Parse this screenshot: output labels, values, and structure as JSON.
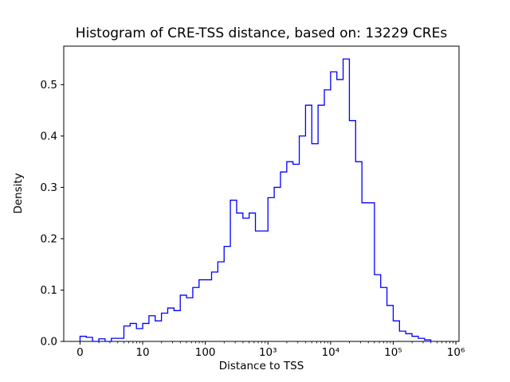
{
  "chart_data": {
    "type": "bar",
    "subtype": "step-histogram",
    "title": "Histogram of CRE-TSS distance, based on: 13229 CREs",
    "cre_count": 13229,
    "xlabel": "Distance to TSS",
    "ylabel": "Density",
    "line_color": "#0000ff",
    "axis_color": "#000000",
    "background_color": "#ffffff",
    "grid": false,
    "legend": false,
    "x_scale": "log10(distance)",
    "xlim_log": [
      -0.26,
      6.05
    ],
    "ylim": [
      0.0,
      0.575
    ],
    "bin_start_log": 0.0,
    "bin_width_log": 0.1,
    "densities": [
      0.01,
      0.008,
      0.0,
      0.005,
      0.0,
      0.006,
      0.006,
      0.03,
      0.035,
      0.025,
      0.035,
      0.05,
      0.04,
      0.055,
      0.065,
      0.06,
      0.09,
      0.085,
      0.105,
      0.12,
      0.12,
      0.135,
      0.155,
      0.185,
      0.275,
      0.25,
      0.24,
      0.25,
      0.215,
      0.215,
      0.28,
      0.3,
      0.33,
      0.35,
      0.345,
      0.4,
      0.46,
      0.385,
      0.46,
      0.49,
      0.525,
      0.51,
      0.55,
      0.43,
      0.35,
      0.27,
      0.27,
      0.13,
      0.105,
      0.07,
      0.04,
      0.02,
      0.015,
      0.01,
      0.006,
      0.003
    ],
    "x_ticks": [
      {
        "log": 0,
        "label": "0"
      },
      {
        "log": 1,
        "label": "10"
      },
      {
        "log": 2,
        "label": "100"
      },
      {
        "log": 3,
        "label": "10³"
      },
      {
        "log": 4,
        "label": "10⁴"
      },
      {
        "log": 5,
        "label": "10⁵"
      },
      {
        "log": 6,
        "label": "10⁶"
      }
    ],
    "x_minor_tick_decades": [
      0,
      1,
      2,
      3,
      4,
      5
    ],
    "y_ticks": [
      {
        "value": 0.0,
        "label": "0.0"
      },
      {
        "value": 0.1,
        "label": "0.1"
      },
      {
        "value": 0.2,
        "label": "0.2"
      },
      {
        "value": 0.3,
        "label": "0.3"
      },
      {
        "value": 0.4,
        "label": "0.4"
      },
      {
        "value": 0.5,
        "label": "0.5"
      }
    ]
  }
}
